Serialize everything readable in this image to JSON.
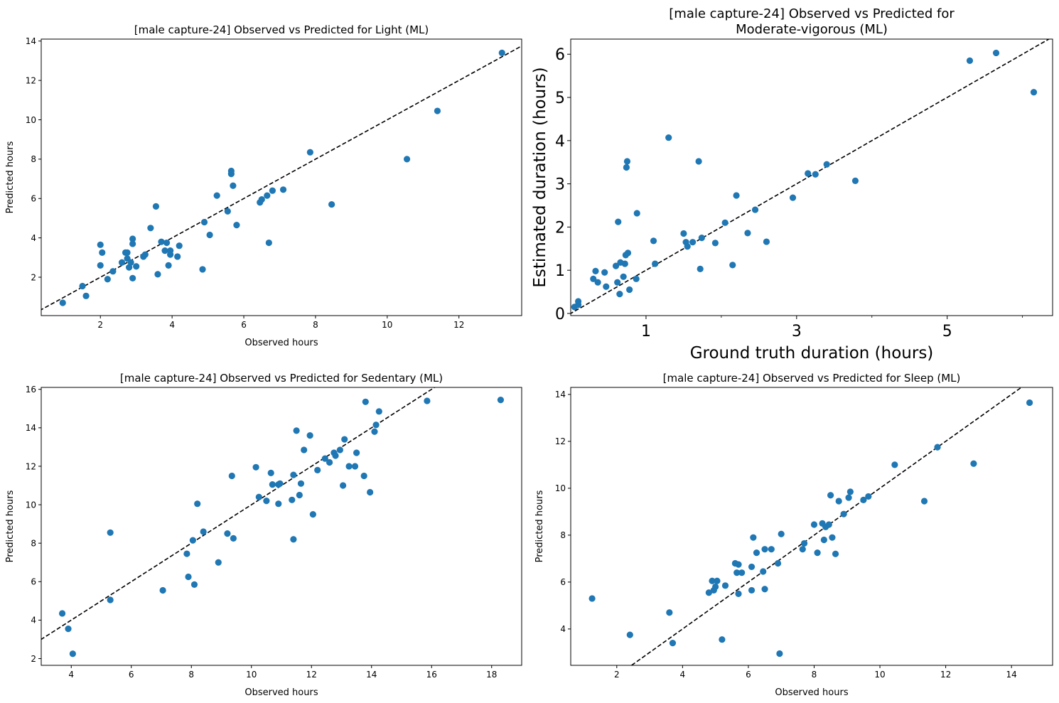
{
  "chart_data": [
    {
      "type": "scatter",
      "title": "[male capture-24] Observed vs Predicted for Light (ML)",
      "xlabel": "Observed hours",
      "ylabel": "Predicted hours",
      "xlim": [
        0.35,
        13.75
      ],
      "ylim": [
        0.05,
        14.1
      ],
      "xticks": [
        "2",
        "4",
        "6",
        "8",
        "10",
        "12"
      ],
      "yticks": [
        "2",
        "4",
        "6",
        "8",
        "10",
        "12",
        "14"
      ],
      "identity_line": true,
      "marker_color": "#1f77b4",
      "points": [
        [
          0.95,
          0.7
        ],
        [
          1.5,
          1.55
        ],
        [
          1.6,
          1.05
        ],
        [
          2.0,
          2.6
        ],
        [
          2.0,
          3.65
        ],
        [
          2.05,
          3.25
        ],
        [
          2.2,
          1.9
        ],
        [
          2.35,
          2.3
        ],
        [
          2.6,
          2.75
        ],
        [
          2.7,
          3.25
        ],
        [
          2.75,
          2.95
        ],
        [
          2.75,
          3.25
        ],
        [
          2.8,
          2.5
        ],
        [
          2.85,
          2.75
        ],
        [
          2.9,
          3.95
        ],
        [
          2.9,
          3.7
        ],
        [
          2.9,
          1.95
        ],
        [
          3.0,
          2.55
        ],
        [
          3.2,
          3.05
        ],
        [
          3.25,
          3.15
        ],
        [
          3.4,
          4.5
        ],
        [
          3.55,
          5.6
        ],
        [
          3.6,
          2.15
        ],
        [
          3.7,
          3.8
        ],
        [
          3.8,
          3.35
        ],
        [
          3.85,
          3.75
        ],
        [
          3.9,
          2.6
        ],
        [
          3.95,
          3.35
        ],
        [
          3.95,
          3.15
        ],
        [
          4.15,
          3.05
        ],
        [
          4.2,
          3.6
        ],
        [
          4.85,
          2.4
        ],
        [
          4.9,
          4.8
        ],
        [
          5.05,
          4.15
        ],
        [
          5.25,
          6.15
        ],
        [
          5.55,
          5.35
        ],
        [
          5.65,
          7.4
        ],
        [
          5.65,
          7.25
        ],
        [
          5.7,
          6.65
        ],
        [
          5.8,
          4.65
        ],
        [
          6.45,
          5.8
        ],
        [
          6.5,
          5.95
        ],
        [
          6.65,
          6.15
        ],
        [
          6.7,
          3.75
        ],
        [
          6.8,
          6.4
        ],
        [
          7.1,
          6.45
        ],
        [
          7.85,
          8.35
        ],
        [
          8.45,
          5.7
        ],
        [
          10.55,
          8.0
        ],
        [
          11.4,
          10.45
        ],
        [
          13.2,
          13.4
        ]
      ]
    },
    {
      "type": "scatter",
      "title_lines": [
        "[male capture-24] Observed vs Predicted for",
        "Moderate-vigorous (ML)"
      ],
      "xlabel": "Ground truth duration (hours)",
      "ylabel": "Estimated duration (hours)",
      "xlim": [
        0.0,
        6.4
      ],
      "ylim": [
        -0.05,
        6.35
      ],
      "xticks": [
        "1",
        "3",
        "5"
      ],
      "yticks": [
        "0",
        "1",
        "2",
        "3",
        "4",
        "5",
        "6"
      ],
      "identity_line": true,
      "marker_color": "#1f77b4",
      "points": [
        [
          0.05,
          0.15
        ],
        [
          0.1,
          0.2
        ],
        [
          0.1,
          0.28
        ],
        [
          0.3,
          0.8
        ],
        [
          0.33,
          0.98
        ],
        [
          0.36,
          0.72
        ],
        [
          0.45,
          0.95
        ],
        [
          0.47,
          0.62
        ],
        [
          0.6,
          1.1
        ],
        [
          0.62,
          0.72
        ],
        [
          0.63,
          2.12
        ],
        [
          0.65,
          0.45
        ],
        [
          0.66,
          1.18
        ],
        [
          0.7,
          0.85
        ],
        [
          0.72,
          1.15
        ],
        [
          0.73,
          1.35
        ],
        [
          0.74,
          3.38
        ],
        [
          0.75,
          3.52
        ],
        [
          0.76,
          1.4
        ],
        [
          0.78,
          0.55
        ],
        [
          0.87,
          0.8
        ],
        [
          0.88,
          2.32
        ],
        [
          1.1,
          1.68
        ],
        [
          1.12,
          1.15
        ],
        [
          1.3,
          4.07
        ],
        [
          1.5,
          1.85
        ],
        [
          1.53,
          1.65
        ],
        [
          1.55,
          1.55
        ],
        [
          1.62,
          1.65
        ],
        [
          1.7,
          3.52
        ],
        [
          1.72,
          1.03
        ],
        [
          1.74,
          1.75
        ],
        [
          1.92,
          1.63
        ],
        [
          2.05,
          2.1
        ],
        [
          2.15,
          1.12
        ],
        [
          2.2,
          2.73
        ],
        [
          2.35,
          1.86
        ],
        [
          2.45,
          2.4
        ],
        [
          2.6,
          1.66
        ],
        [
          2.95,
          2.68
        ],
        [
          3.15,
          3.24
        ],
        [
          3.25,
          3.22
        ],
        [
          3.4,
          3.45
        ],
        [
          3.78,
          3.07
        ],
        [
          5.3,
          5.85
        ],
        [
          5.65,
          6.03
        ],
        [
          6.15,
          5.12
        ]
      ]
    },
    {
      "type": "scatter",
      "title": "[male capture-24] Observed vs Predicted for Sedentary (ML)",
      "xlabel": "Observed hours",
      "ylabel": "Predicted hours",
      "xlim": [
        3.0,
        19.0
      ],
      "ylim": [
        1.65,
        16.1
      ],
      "xticks": [
        "4",
        "6",
        "8",
        "10",
        "12",
        "14",
        "16",
        "18"
      ],
      "yticks": [
        "2",
        "4",
        "6",
        "8",
        "10",
        "12",
        "14",
        "16"
      ],
      "identity_line": true,
      "marker_color": "#1f77b4",
      "points": [
        [
          3.7,
          4.35
        ],
        [
          3.9,
          3.55
        ],
        [
          4.05,
          2.25
        ],
        [
          5.3,
          8.55
        ],
        [
          5.3,
          5.05
        ],
        [
          7.05,
          5.55
        ],
        [
          7.85,
          7.45
        ],
        [
          7.9,
          6.25
        ],
        [
          8.05,
          8.15
        ],
        [
          8.1,
          5.85
        ],
        [
          8.2,
          10.05
        ],
        [
          8.4,
          8.6
        ],
        [
          8.9,
          7.0
        ],
        [
          9.2,
          8.5
        ],
        [
          9.35,
          11.5
        ],
        [
          9.4,
          8.25
        ],
        [
          10.15,
          11.95
        ],
        [
          10.25,
          10.4
        ],
        [
          10.5,
          10.2
        ],
        [
          10.65,
          11.65
        ],
        [
          10.7,
          11.05
        ],
        [
          10.9,
          10.05
        ],
        [
          10.9,
          11.05
        ],
        [
          10.95,
          11.1
        ],
        [
          11.35,
          10.25
        ],
        [
          11.4,
          11.55
        ],
        [
          11.4,
          8.2
        ],
        [
          11.5,
          13.85
        ],
        [
          11.6,
          10.5
        ],
        [
          11.65,
          11.1
        ],
        [
          11.75,
          12.85
        ],
        [
          11.95,
          13.6
        ],
        [
          12.05,
          9.5
        ],
        [
          12.2,
          11.8
        ],
        [
          12.45,
          12.4
        ],
        [
          12.6,
          12.2
        ],
        [
          12.75,
          12.7
        ],
        [
          12.8,
          12.55
        ],
        [
          12.95,
          12.85
        ],
        [
          13.05,
          11.0
        ],
        [
          13.1,
          13.4
        ],
        [
          13.25,
          12.0
        ],
        [
          13.45,
          12.0
        ],
        [
          13.5,
          12.7
        ],
        [
          13.75,
          11.5
        ],
        [
          13.8,
          15.35
        ],
        [
          13.95,
          10.65
        ],
        [
          14.1,
          13.8
        ],
        [
          14.15,
          14.15
        ],
        [
          14.25,
          14.85
        ],
        [
          15.85,
          15.4
        ],
        [
          18.3,
          15.45
        ]
      ]
    },
    {
      "type": "scatter",
      "title": "[male capture-24] Observed vs Predicted for Sleep (ML)",
      "xlabel": "Observed hours",
      "ylabel": "Predicted hours",
      "xlim": [
        0.6,
        15.25
      ],
      "ylim": [
        2.45,
        14.3
      ],
      "xticks": [
        "2",
        "4",
        "6",
        "8",
        "10",
        "12",
        "14"
      ],
      "yticks": [
        "4",
        "6",
        "8",
        "10",
        "12",
        "14"
      ],
      "identity_line": true,
      "marker_color": "#1f77b4",
      "points": [
        [
          1.25,
          5.3
        ],
        [
          2.4,
          3.75
        ],
        [
          3.6,
          4.7
        ],
        [
          3.7,
          3.4
        ],
        [
          4.8,
          5.55
        ],
        [
          4.9,
          6.05
        ],
        [
          4.95,
          5.65
        ],
        [
          5.0,
          5.8
        ],
        [
          5.05,
          6.05
        ],
        [
          5.2,
          3.55
        ],
        [
          5.3,
          5.85
        ],
        [
          5.6,
          6.8
        ],
        [
          5.65,
          6.4
        ],
        [
          5.7,
          6.75
        ],
        [
          5.7,
          5.5
        ],
        [
          5.8,
          6.4
        ],
        [
          6.1,
          6.65
        ],
        [
          6.1,
          5.65
        ],
        [
          6.15,
          7.9
        ],
        [
          6.25,
          7.25
        ],
        [
          6.45,
          6.45
        ],
        [
          6.5,
          7.4
        ],
        [
          6.5,
          5.7
        ],
        [
          6.7,
          7.4
        ],
        [
          6.9,
          6.8
        ],
        [
          6.95,
          2.95
        ],
        [
          7.0,
          8.05
        ],
        [
          7.65,
          7.4
        ],
        [
          7.7,
          7.65
        ],
        [
          8.0,
          8.45
        ],
        [
          8.1,
          7.25
        ],
        [
          8.25,
          8.5
        ],
        [
          8.3,
          7.8
        ],
        [
          8.35,
          8.35
        ],
        [
          8.45,
          8.45
        ],
        [
          8.5,
          9.7
        ],
        [
          8.55,
          7.9
        ],
        [
          8.65,
          7.2
        ],
        [
          8.75,
          9.45
        ],
        [
          8.9,
          8.9
        ],
        [
          9.05,
          9.6
        ],
        [
          9.1,
          9.85
        ],
        [
          9.5,
          9.5
        ],
        [
          9.65,
          9.65
        ],
        [
          10.45,
          11.0
        ],
        [
          11.35,
          9.45
        ],
        [
          11.75,
          11.75
        ],
        [
          12.85,
          11.05
        ],
        [
          14.55,
          13.65
        ]
      ]
    }
  ]
}
